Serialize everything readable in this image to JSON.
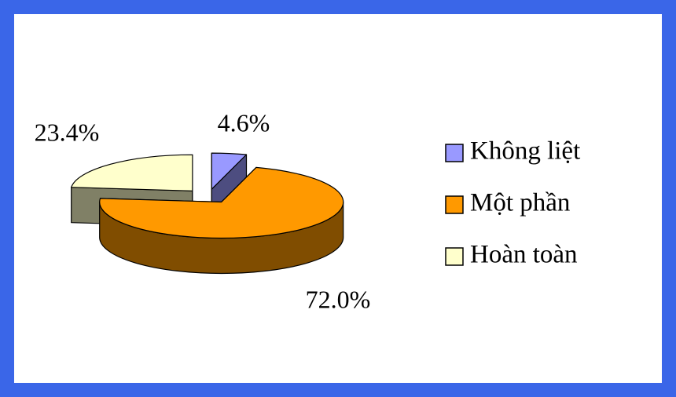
{
  "chart_data": {
    "type": "pie",
    "categories": [
      "Không liệt",
      "Một phần",
      "Hoàn toàn"
    ],
    "values": [
      4.6,
      72.0,
      23.4
    ],
    "value_labels": [
      "4.6%",
      "72.0%",
      "23.4%"
    ],
    "colors": [
      "#9999ff",
      "#ff9900",
      "#ffffcc"
    ],
    "legend": "right"
  }
}
